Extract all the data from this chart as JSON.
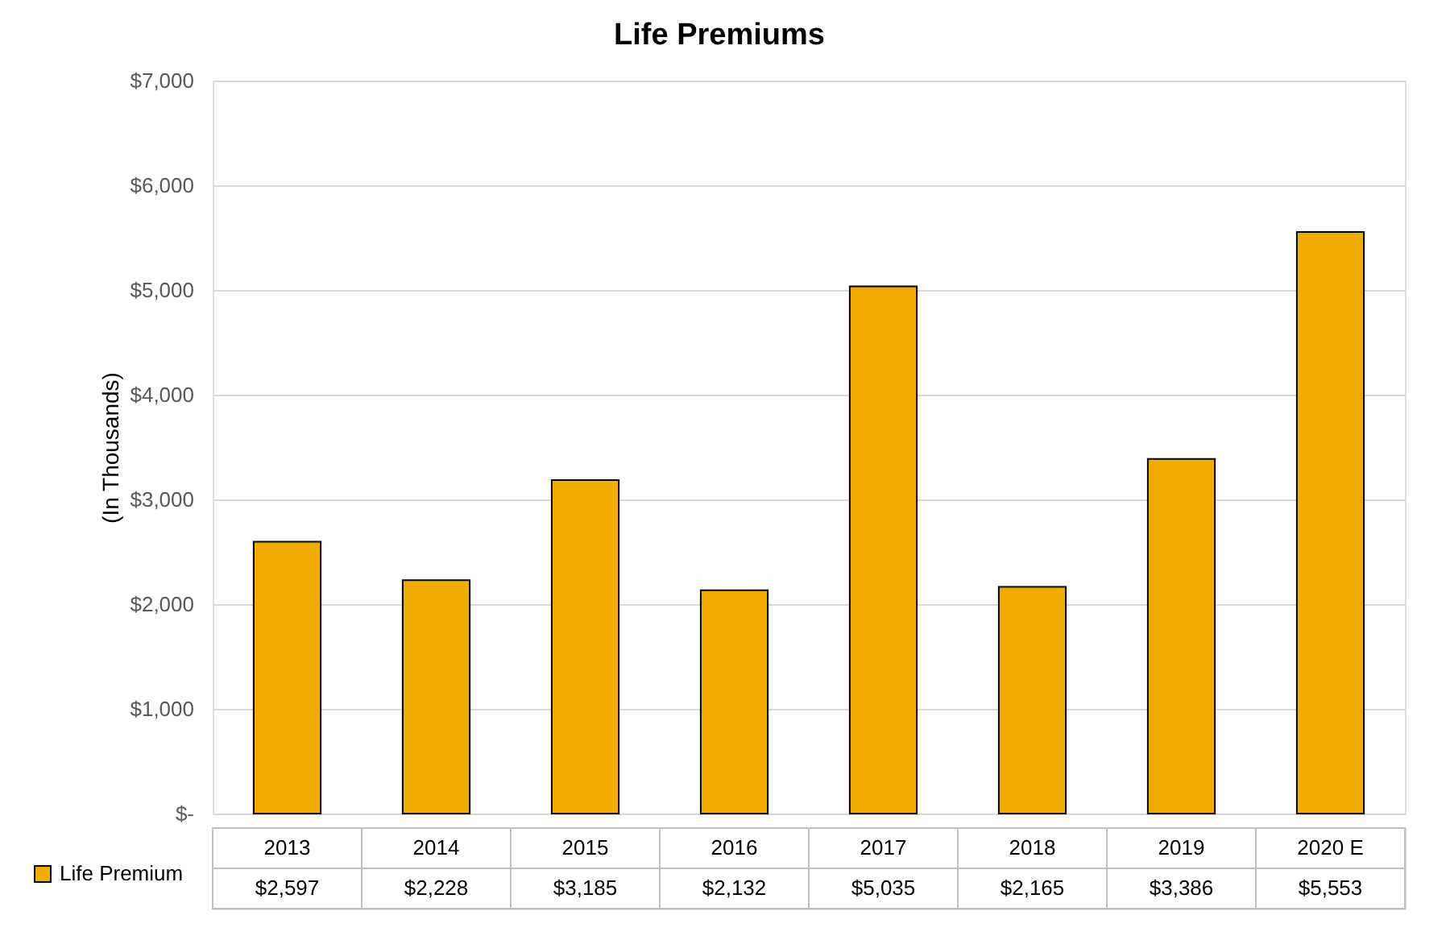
{
  "chart_data": {
    "type": "bar",
    "title": "Life Premiums",
    "ylabel": "(In Thousands)",
    "categories": [
      "2013",
      "2014",
      "2015",
      "2016",
      "2017",
      "2018",
      "2019",
      "2020 E"
    ],
    "series": [
      {
        "name": "Life Premium",
        "color": "#f0ab00",
        "values": [
          2597,
          2228,
          3185,
          2132,
          5035,
          2165,
          3386,
          5553
        ],
        "value_labels": [
          "$2,597",
          "$2,228",
          "$3,185",
          "$2,132",
          "$5,035",
          "$2,165",
          "$3,386",
          "$5,553"
        ]
      }
    ],
    "ylim": [
      0,
      7000
    ],
    "yticks": [
      {
        "value": 0,
        "label": "$-"
      },
      {
        "value": 1000,
        "label": "$1,000"
      },
      {
        "value": 2000,
        "label": "$2,000"
      },
      {
        "value": 3000,
        "label": "$3,000"
      },
      {
        "value": 4000,
        "label": "$4,000"
      },
      {
        "value": 5000,
        "label": "$5,000"
      },
      {
        "value": 6000,
        "label": "$6,000"
      },
      {
        "value": 7000,
        "label": "$7,000"
      }
    ],
    "grid": "y",
    "legend": "bottom left",
    "data_labels": true
  }
}
